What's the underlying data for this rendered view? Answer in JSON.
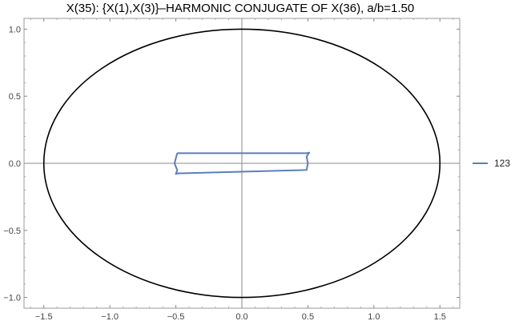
{
  "chart_data": {
    "type": "line",
    "title": "X(35): {X(1),X(3)}–HARMONIC CONJUGATE OF X(36), a/b=1.50",
    "xlabel": "",
    "ylabel": "",
    "xlim": [
      -1.65,
      1.65
    ],
    "ylim": [
      -1.08,
      1.08
    ],
    "x_ticks": [
      {
        "value": -1.5,
        "label": "−1.5"
      },
      {
        "value": -1.0,
        "label": "−1.0"
      },
      {
        "value": -0.5,
        "label": "−0.5"
      },
      {
        "value": 0.0,
        "label": "0.0"
      },
      {
        "value": 0.5,
        "label": "0.5"
      },
      {
        "value": 1.0,
        "label": "1.0"
      },
      {
        "value": 1.5,
        "label": "1.5"
      }
    ],
    "y_ticks": [
      {
        "value": -1.0,
        "label": "−1.0"
      },
      {
        "value": -0.5,
        "label": "−0.5"
      },
      {
        "value": 0.0,
        "label": "0.0"
      },
      {
        "value": 0.5,
        "label": "0.5"
      },
      {
        "value": 1.0,
        "label": "1.0"
      }
    ],
    "grid": false,
    "axes_lines_at_origin": true,
    "legend_position": "right",
    "reference_ellipse": {
      "a": 1.5,
      "b": 1.0,
      "color": "#000000"
    },
    "series": [
      {
        "name": "123",
        "color": "#5b7fb8",
        "x": [
          -0.49,
          0.49,
          0.51,
          0.49,
          0.5,
          0.49,
          -0.49,
          -0.5,
          -0.49,
          -0.51,
          -0.49
        ],
        "y": [
          0.075,
          0.075,
          0.08,
          0.05,
          0.0,
          -0.05,
          -0.075,
          -0.08,
          -0.05,
          0.0,
          0.075
        ]
      }
    ]
  }
}
